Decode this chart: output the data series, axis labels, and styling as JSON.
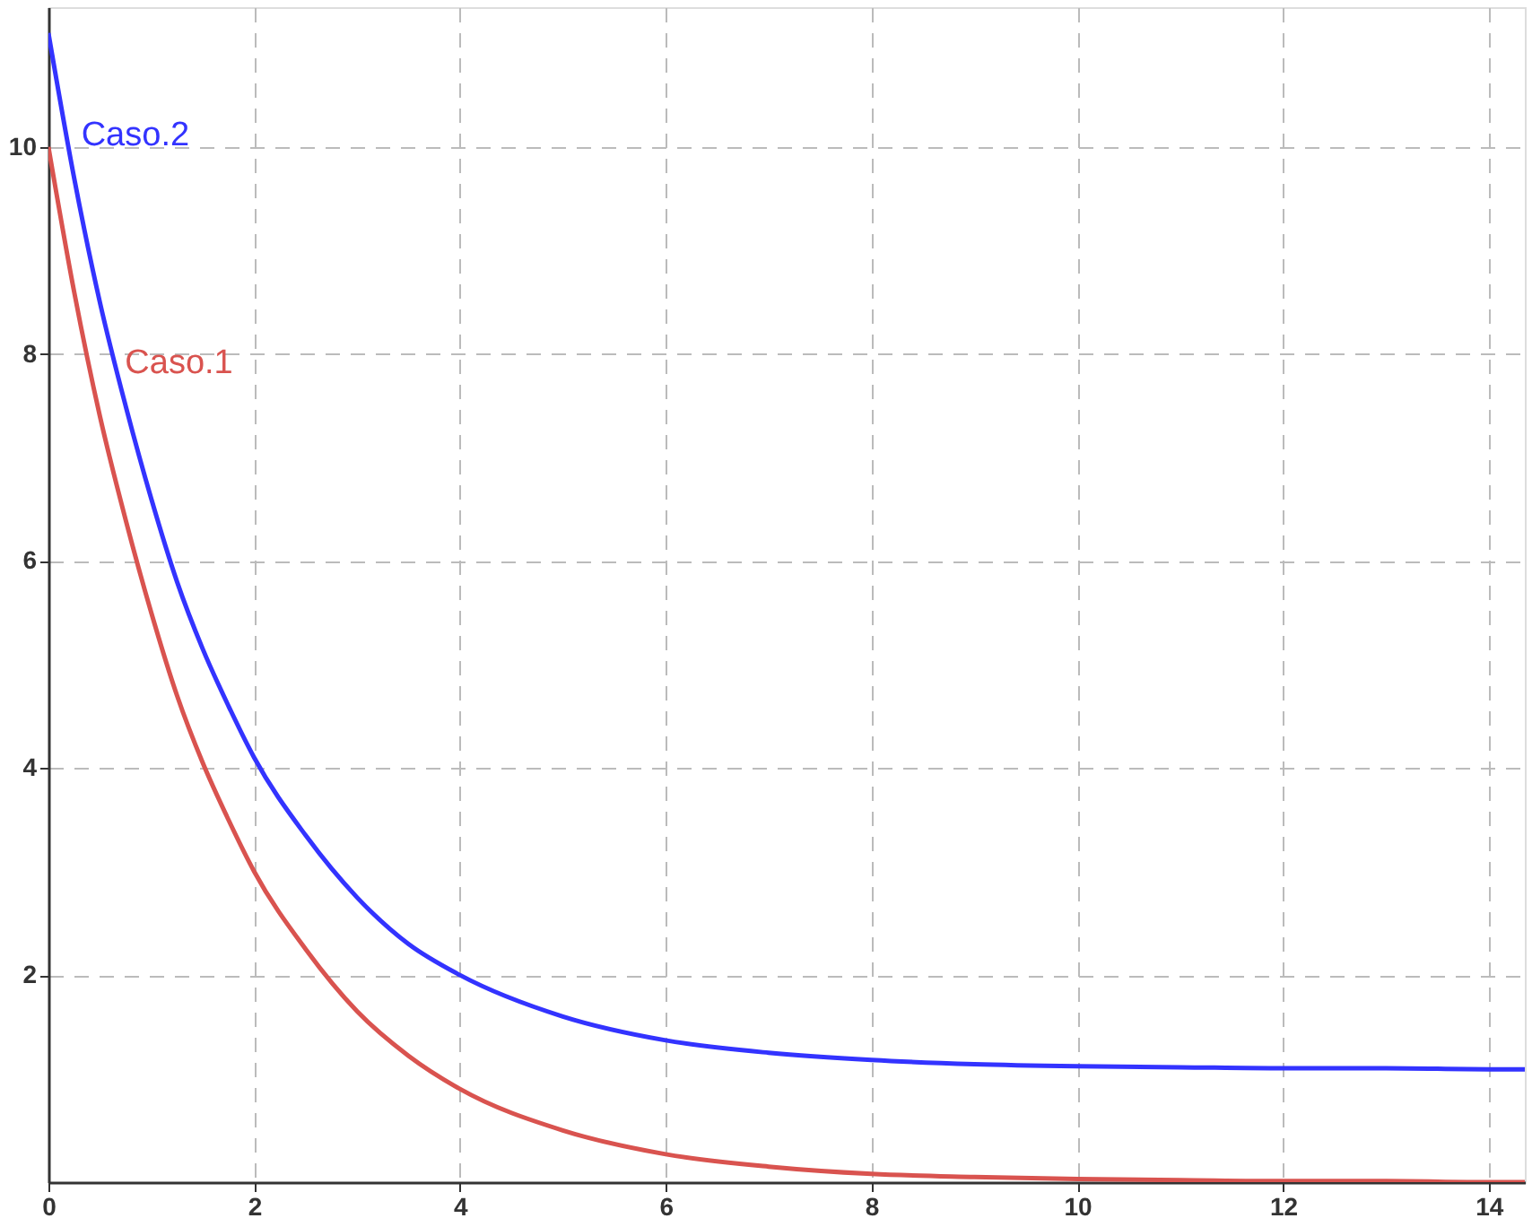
{
  "chart_data": {
    "type": "line",
    "x": [
      0,
      0.25,
      0.5,
      0.75,
      1,
      1.25,
      1.5,
      1.75,
      2,
      2.5,
      3,
      3.5,
      4,
      5,
      6,
      7,
      8,
      9,
      10,
      11,
      12,
      13,
      14,
      14.35
    ],
    "series": [
      {
        "name": "Caso.1",
        "color": "#d9534f",
        "values": [
          10,
          8.6,
          7.4,
          6.4,
          5.5,
          4.7,
          4.05,
          3.5,
          3.0,
          2.25,
          1.65,
          1.22,
          0.9,
          0.5,
          0.27,
          0.15,
          0.08,
          0.05,
          0.03,
          0.02,
          0.01,
          0.01,
          0,
          0
        ]
      },
      {
        "name": "Caso.2",
        "color": "#3333ff",
        "values": [
          11.1,
          9.7,
          8.5,
          7.5,
          6.6,
          5.8,
          5.15,
          4.6,
          4.1,
          3.35,
          2.75,
          2.3,
          2.0,
          1.6,
          1.37,
          1.25,
          1.18,
          1.14,
          1.12,
          1.11,
          1.1,
          1.1,
          1.09,
          1.09
        ]
      }
    ],
    "xlim": [
      0,
      14.35
    ],
    "xticks": [
      0,
      2,
      4,
      6,
      8,
      10,
      12,
      14
    ],
    "ylim": [
      0,
      11.35
    ],
    "yticks": [
      2,
      4,
      6,
      8,
      10
    ],
    "grid": true,
    "line_style": "solid",
    "marker": "none"
  }
}
